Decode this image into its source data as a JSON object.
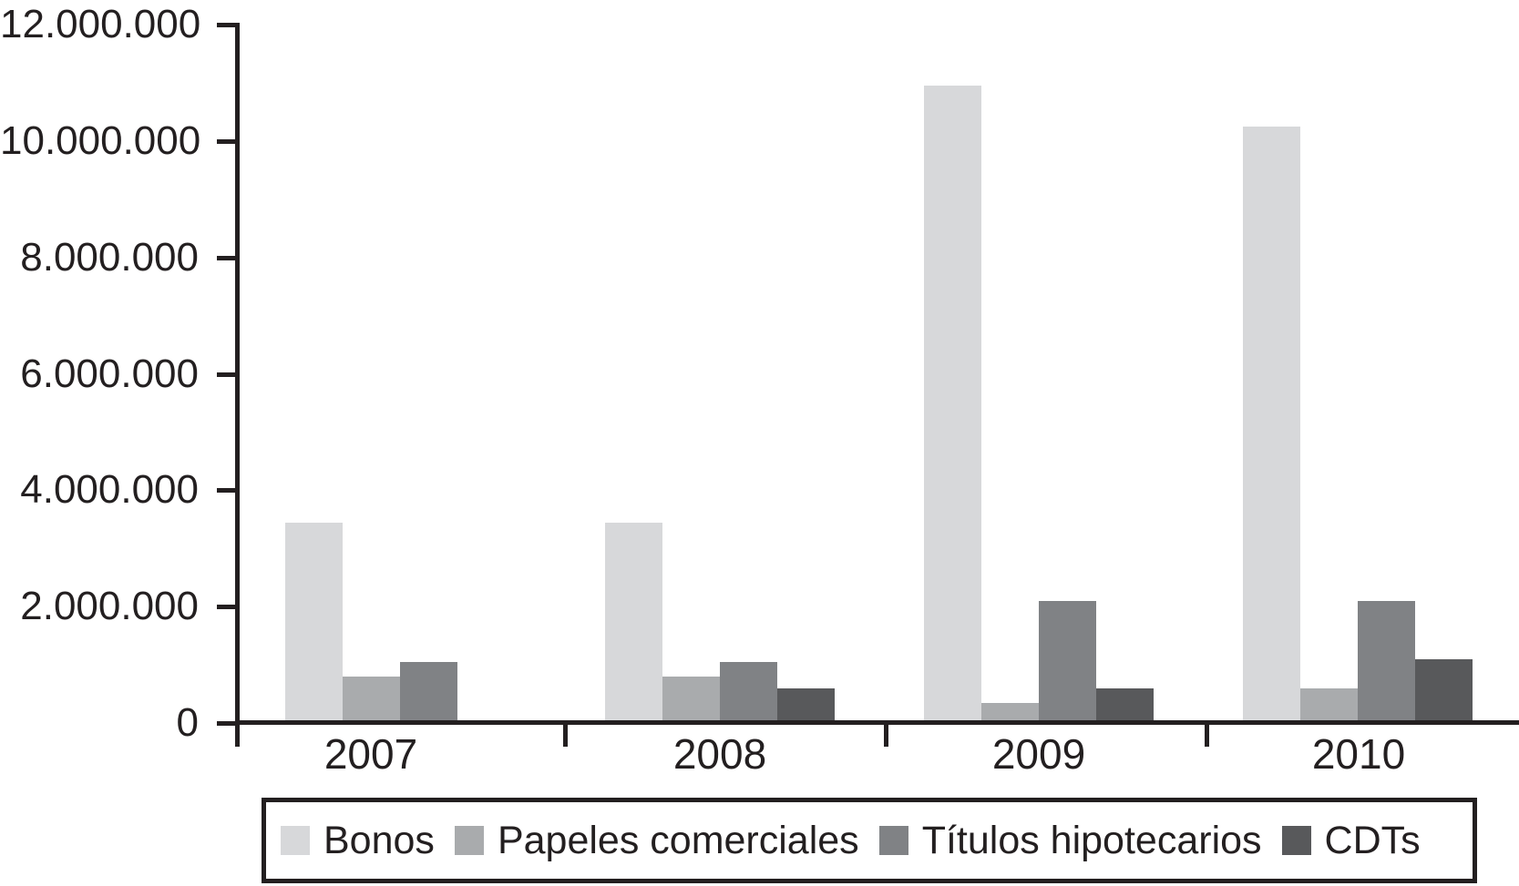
{
  "figure": {
    "background": "#ffffff",
    "axis_color": "#231f20",
    "text_color": "#231f20"
  },
  "chart_data": {
    "type": "bar",
    "title": "",
    "xlabel": "",
    "ylabel": "",
    "grid": false,
    "legend_position": "bottom",
    "categories": [
      "2007",
      "2008",
      "2009",
      "2010"
    ],
    "series": [
      {
        "name": "Bonos",
        "color": "#d7d8da",
        "values": [
          3400000,
          3400000,
          10900000,
          10200000
        ]
      },
      {
        "name": "Papeles comerciales",
        "color": "#a9abad",
        "values": [
          750000,
          750000,
          300000,
          550000
        ]
      },
      {
        "name": "Títulos hipotecarios",
        "color": "#808285",
        "values": [
          1000000,
          1000000,
          2050000,
          2050000
        ]
      },
      {
        "name": "CDTs",
        "color": "#58595b",
        "values": [
          0,
          550000,
          550000,
          1050000
        ]
      }
    ],
    "ylim": [
      0,
      12000000
    ],
    "ytick_step": 2000000,
    "yticks": [
      {
        "value": 0,
        "label": "0"
      },
      {
        "value": 2000000,
        "label": "2.000.000"
      },
      {
        "value": 4000000,
        "label": "4.000.000"
      },
      {
        "value": 6000000,
        "label": "6.000.000"
      },
      {
        "value": 8000000,
        "label": "8.000.000"
      },
      {
        "value": 10000000,
        "label": "10.000.000"
      },
      {
        "value": 12000000,
        "label": "12.000.000"
      }
    ]
  }
}
